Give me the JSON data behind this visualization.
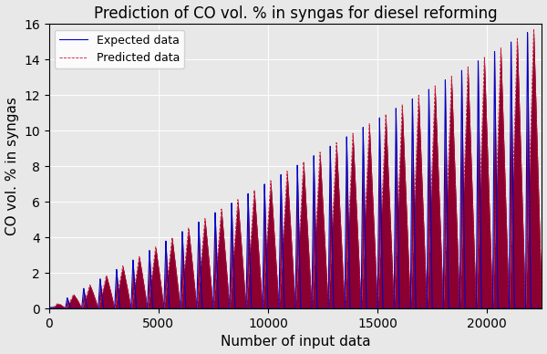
{
  "title": "Prediction of CO vol. % in syngas for diesel reforming",
  "xlabel": "Number of input data",
  "ylabel": "CO vol. % in syngas",
  "xlim": [
    0,
    22500
  ],
  "ylim": [
    0,
    16
  ],
  "yticks": [
    0,
    2,
    4,
    6,
    8,
    10,
    12,
    14,
    16
  ],
  "xticks": [
    0,
    5000,
    10000,
    15000,
    20000
  ],
  "n_cycles": 30,
  "total_points": 22500,
  "expected_color": "#0000cc",
  "predicted_color": "#cc1133",
  "fill_color": "#8b0030",
  "fill_alpha": 1.0,
  "legend_expected": "Expected data",
  "legend_predicted": "Predicted data",
  "background_color": "#e8e8e8",
  "title_fontsize": 12,
  "label_fontsize": 11
}
